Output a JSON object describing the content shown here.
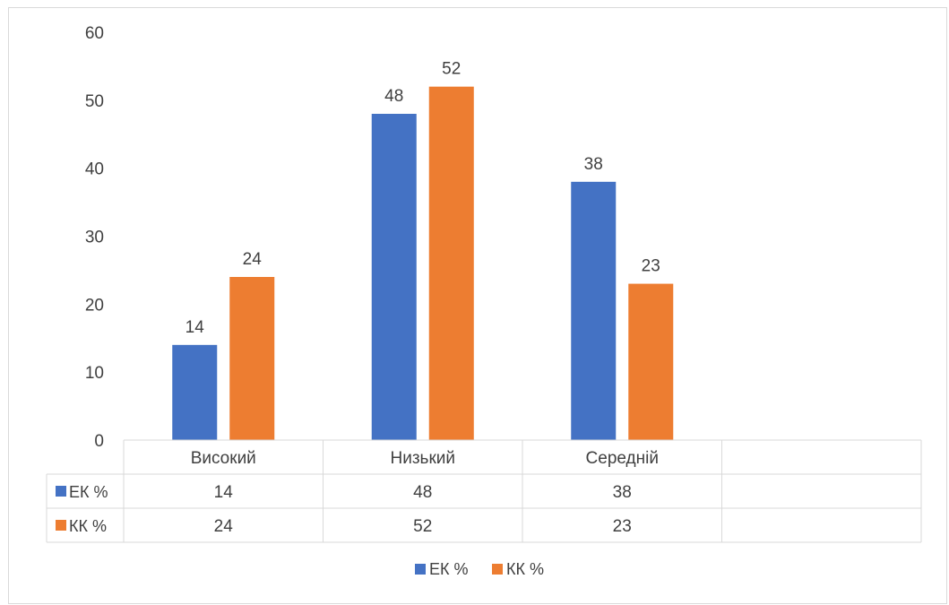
{
  "chart_data": {
    "type": "bar",
    "categories": [
      "Високий",
      "Низький",
      "Середній"
    ],
    "series": [
      {
        "name": "ЕК %",
        "values": [
          14,
          48,
          38
        ],
        "color": "#4472C4"
      },
      {
        "name": "КК %",
        "values": [
          24,
          52,
          23
        ],
        "color": "#ED7D31"
      }
    ],
    "title": "",
    "xlabel": "",
    "ylabel": "",
    "ylim": [
      0,
      60
    ],
    "yticks": [
      0,
      10,
      20,
      30,
      40,
      50,
      60
    ],
    "grid": false,
    "data_labels": true,
    "data_table": true,
    "legend_position": "bottom"
  }
}
